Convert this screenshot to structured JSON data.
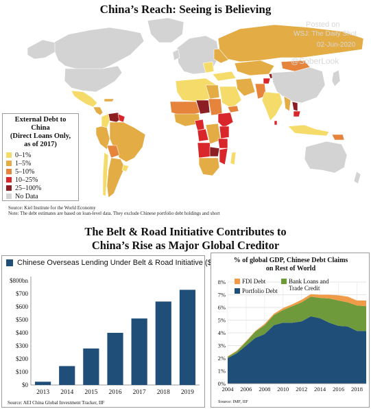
{
  "map": {
    "title": "China’s Reach: Seeing is Believing",
    "watermark": [
      "Posted on",
      "WSJ: The Daily Shot",
      "02-Jun-2020",
      "@SoberLook"
    ],
    "legend": {
      "title_lines": [
        "External Debt to China",
        "(Direct Loans Only,",
        "as of 2017)"
      ],
      "items": [
        {
          "label": "0–1%",
          "color": "#f5dc6a"
        },
        {
          "label": "1–5%",
          "color": "#e3ac45"
        },
        {
          "label": "5–10%",
          "color": "#e6843c"
        },
        {
          "label": "10–25%",
          "color": "#d9262b"
        },
        {
          "label": "25–100%",
          "color": "#8c1f24"
        },
        {
          "label": "No Data",
          "color": "#d3d3d3"
        }
      ]
    },
    "sources": [
      "Source:  Kiel Institute for the World Economy",
      "Note:  The debt estimates are based on loan-level data. They exclude Chinese portfolio debt holdings and short"
    ]
  },
  "section_title_lines": [
    "The Belt & Road Initiative Contributes to",
    "China’s Rise as Major Global Creditor"
  ],
  "chart_data": [
    {
      "type": "bar",
      "title": "Chinese Overseas Lending Under Belt & Road Initiative ($bn)",
      "categories": [
        "2013",
        "2014",
        "2015",
        "2016",
        "2017",
        "2018",
        "2019"
      ],
      "values": [
        25,
        145,
        280,
        400,
        510,
        640,
        730
      ],
      "ylim": [
        0,
        800
      ],
      "yticks": [
        "$0",
        "$100",
        "$200",
        "$300",
        "$400",
        "$500",
        "$600",
        "$700",
        "$800bn"
      ],
      "color": "#1f4e79",
      "grid": false,
      "source": "Source:    AEI China Global Investment Tracker, IIF"
    },
    {
      "type": "area",
      "stacked": true,
      "title_lines": [
        "% of global GDP, Chinese Debt Claims",
        "on Rest of World"
      ],
      "x": [
        2004,
        2005,
        2006,
        2007,
        2008,
        2009,
        2010,
        2011,
        2012,
        2013,
        2014,
        2015,
        2016,
        2017,
        2018,
        2019
      ],
      "xticks": [
        "2004",
        "2006",
        "2008",
        "2010",
        "2012",
        "2014",
        "2016",
        "2018"
      ],
      "yticks": [
        "0%",
        "1%",
        "2%",
        "3%",
        "4%",
        "5%",
        "6%",
        "7%",
        "8%"
      ],
      "ylim": [
        0,
        8
      ],
      "grid": true,
      "series": [
        {
          "name": "Portfolio Debt",
          "color": "#1f4e79",
          "values": [
            2.0,
            2.4,
            3.0,
            3.6,
            3.9,
            4.6,
            4.8,
            4.8,
            4.9,
            5.3,
            5.15,
            4.8,
            4.55,
            4.5,
            4.15,
            4.15
          ]
        },
        {
          "name": "Bank Loans and Trade Credit",
          "color": "#6e9a3c",
          "values": [
            0.1,
            0.15,
            0.3,
            0.5,
            0.7,
            0.8,
            1.0,
            1.3,
            1.5,
            1.55,
            1.6,
            1.9,
            2.0,
            1.9,
            2.0,
            1.95
          ]
        },
        {
          "name": "FDI Debt",
          "color": "#ef9b47",
          "values": [
            0.05,
            0.05,
            0.05,
            0.05,
            0.1,
            0.1,
            0.15,
            0.15,
            0.2,
            0.2,
            0.25,
            0.3,
            0.4,
            0.45,
            0.4,
            0.45
          ]
        }
      ],
      "source": "Source:   IMF, IIF"
    }
  ]
}
